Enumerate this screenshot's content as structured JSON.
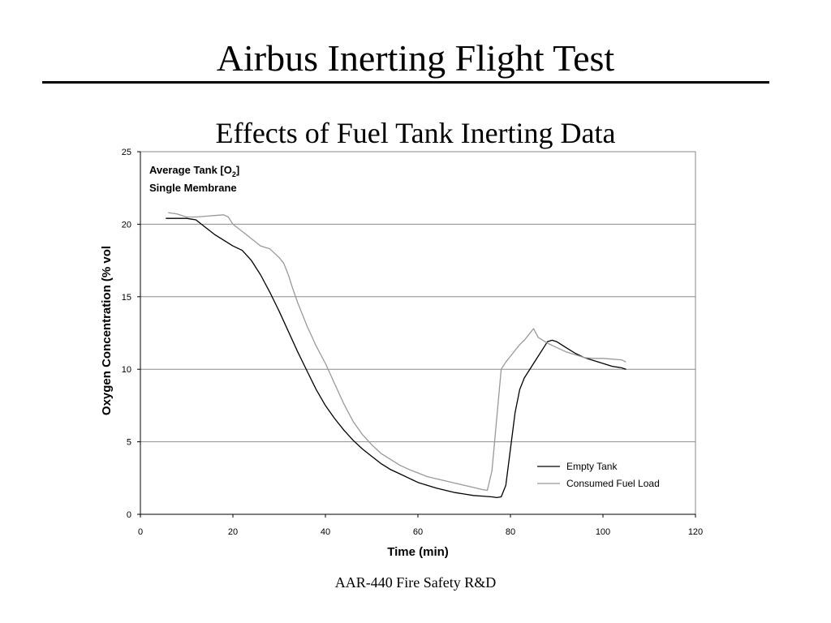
{
  "slide": {
    "title": "Airbus Inerting Flight Test",
    "subtitle": "Effects of Fuel Tank Inerting Data",
    "footer": "AAR-440 Fire Safety R&D"
  },
  "chart_data": {
    "type": "line",
    "xlabel": "Time (min)",
    "ylabel": "Oxygen Concentration (% vol",
    "xlim": [
      0,
      120
    ],
    "ylim": [
      0,
      25
    ],
    "xticks": [
      0,
      20,
      40,
      60,
      80,
      100,
      120
    ],
    "yticks": [
      0,
      5,
      10,
      15,
      20,
      25
    ],
    "grid": "horizontal",
    "legend_position": "bottom-right",
    "annotation": {
      "line1_prefix": "Average Tank [O",
      "line1_sub": "2",
      "line1_suffix": "]",
      "line2": "Single Membrane"
    },
    "series": [
      {
        "name": "Empty Tank",
        "color": "#000000",
        "x": [
          5.5,
          8,
          10,
          12,
          14,
          16,
          18,
          20,
          22,
          24,
          26,
          28,
          30,
          32,
          34,
          36,
          38,
          40,
          42,
          44,
          46,
          48,
          50,
          52,
          54,
          56,
          58,
          60,
          62,
          64,
          66,
          68,
          70,
          72,
          74,
          76,
          77,
          78,
          79,
          80,
          81,
          82,
          83,
          84,
          85,
          86,
          87,
          88,
          89,
          90,
          92,
          94,
          96,
          98,
          100,
          102,
          104,
          105
        ],
        "values": [
          20.4,
          20.4,
          20.4,
          20.3,
          19.8,
          19.3,
          18.9,
          18.5,
          18.2,
          17.5,
          16.5,
          15.3,
          14.0,
          12.6,
          11.2,
          9.9,
          8.6,
          7.5,
          6.6,
          5.8,
          5.1,
          4.5,
          4.0,
          3.5,
          3.1,
          2.8,
          2.5,
          2.2,
          2.0,
          1.8,
          1.65,
          1.5,
          1.4,
          1.3,
          1.25,
          1.2,
          1.15,
          1.2,
          2.0,
          4.5,
          7.0,
          8.6,
          9.4,
          9.9,
          10.4,
          10.9,
          11.4,
          11.9,
          12.0,
          11.9,
          11.5,
          11.1,
          10.8,
          10.6,
          10.4,
          10.2,
          10.1,
          10.0
        ]
      },
      {
        "name": "Consumed Fuel Load",
        "color": "#999999",
        "x": [
          6,
          8,
          10,
          12,
          14,
          16,
          18,
          19,
          20,
          22,
          24,
          26,
          28,
          29,
          30,
          31,
          32,
          33,
          34,
          36,
          38,
          40,
          42,
          44,
          46,
          48,
          50,
          52,
          54,
          56,
          58,
          60,
          62,
          64,
          66,
          68,
          70,
          72,
          74,
          75,
          76,
          77,
          78,
          79,
          80,
          81,
          82,
          83,
          84,
          85,
          86,
          88,
          90,
          92,
          94,
          96,
          98,
          100,
          102,
          104,
          105
        ],
        "values": [
          20.8,
          20.7,
          20.5,
          20.5,
          20.55,
          20.6,
          20.65,
          20.5,
          20.0,
          19.5,
          19.0,
          18.5,
          18.3,
          18.0,
          17.7,
          17.3,
          16.5,
          15.5,
          14.6,
          13.0,
          11.6,
          10.4,
          9.0,
          7.6,
          6.4,
          5.5,
          4.8,
          4.2,
          3.8,
          3.4,
          3.1,
          2.85,
          2.6,
          2.45,
          2.3,
          2.15,
          2.0,
          1.85,
          1.7,
          1.65,
          3.0,
          6.5,
          10.0,
          10.5,
          10.9,
          11.3,
          11.7,
          12.0,
          12.4,
          12.8,
          12.2,
          11.8,
          11.5,
          11.2,
          11.0,
          10.8,
          10.75,
          10.75,
          10.7,
          10.65,
          10.5
        ]
      }
    ]
  }
}
